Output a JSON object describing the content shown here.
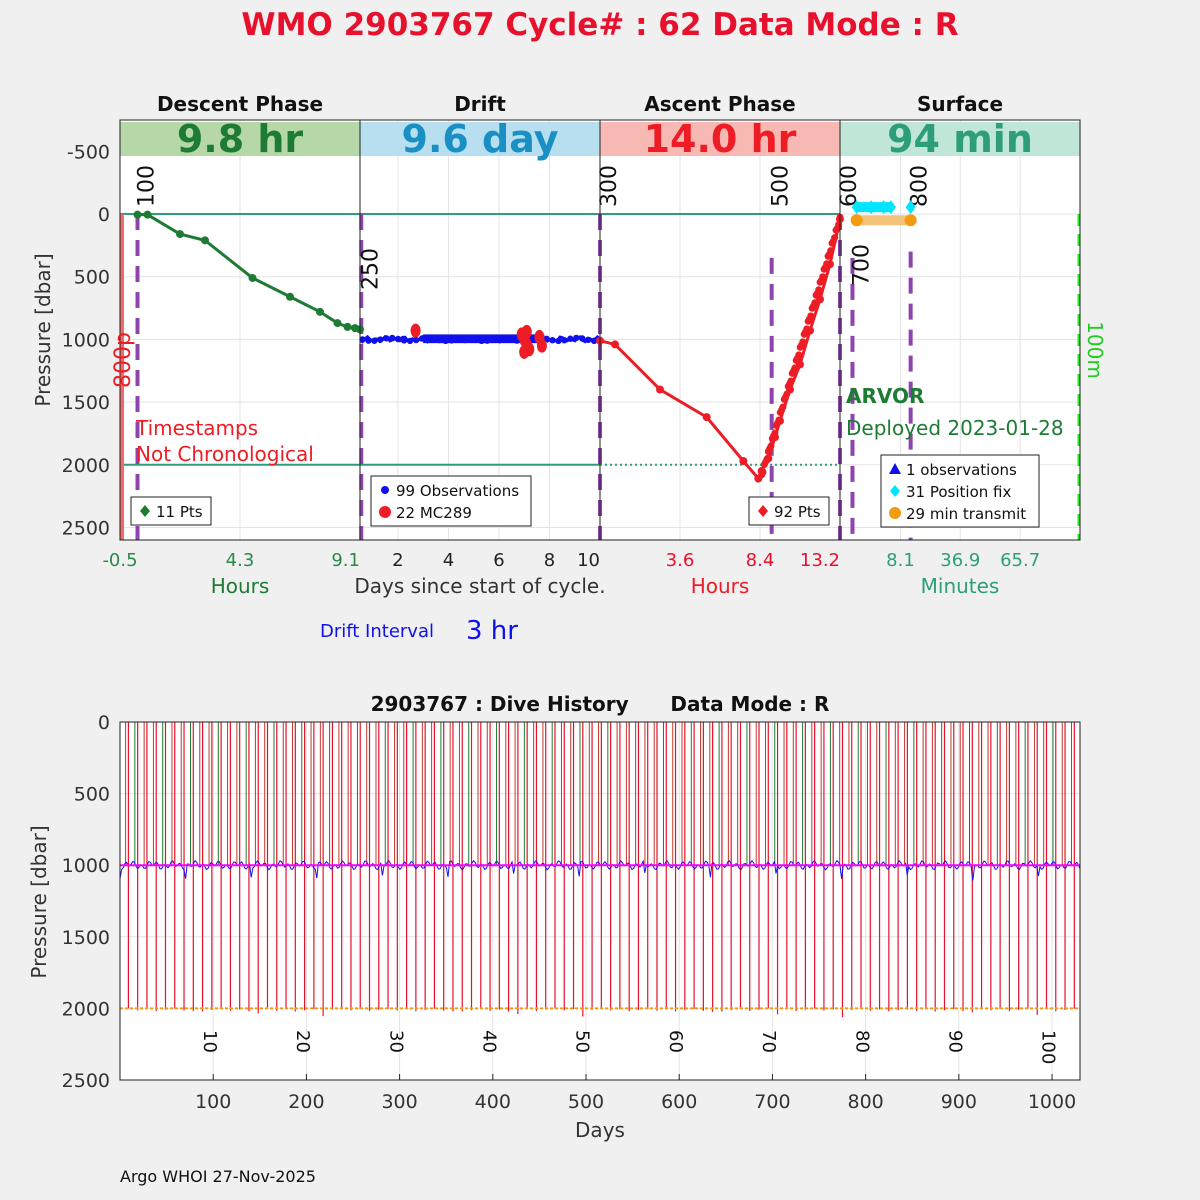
{
  "title": "WMO 2903767   Cycle# : 62   Data Mode : R",
  "colors": {
    "title": "#e8112d",
    "descent": "#1e7b34",
    "drift": "#1010ee",
    "ascent": "#ee1c25",
    "surface_teal": "#2e9e7a",
    "purple": "#8e44ad",
    "orange": "#f39c12",
    "cyan": "#00e5ff",
    "band_descent": "#b6d7a8",
    "band_drift": "#b7dff0",
    "band_ascent": "#f8b9b4",
    "band_surface": "#bfe6d6"
  },
  "top": {
    "yaxis": {
      "label": "Pressure [dbar]",
      "ticks": [
        -500,
        0,
        500,
        1000,
        1500,
        2000,
        2500
      ],
      "tick_labels": [
        "-500",
        "0",
        "500",
        "1000",
        "1500",
        "2000",
        "2500"
      ],
      "ylim": [
        -750,
        2600
      ]
    },
    "phases": [
      {
        "title": "Descent Phase",
        "band": "9.8 hr",
        "color": "#1e7b34",
        "band_color": "#b6d7a8",
        "xlabel": "Hours",
        "xlim": [
          -0.5,
          9.1
        ],
        "xticks": [
          -0.5,
          4.3,
          9.1
        ],
        "xtick_labels": [
          "-0.5",
          "4.3",
          "9.1"
        ],
        "tick_color": "#2a8a4a"
      },
      {
        "title": "Drift",
        "band": "9.6 day",
        "color": "#1a8fc4",
        "band_color": "#b7dff0",
        "xlabel": "Days since start of cycle.",
        "xlim": [
          0.5,
          10
        ],
        "xticks": [
          2,
          4,
          6,
          8,
          10
        ],
        "xtick_labels": [
          "2",
          "4",
          "6",
          "8",
          "10"
        ],
        "tick_color": "#222222"
      },
      {
        "title": "Ascent Phase",
        "band": "14.0 hr",
        "color": "#ee1c25",
        "band_color": "#f8b9b4",
        "xlabel": "Hours",
        "xlim": [
          -1.2,
          13.2
        ],
        "xticks": [
          3.6,
          8.4,
          13.2
        ],
        "xtick_labels": [
          "3.6",
          "8.4",
          "13.2"
        ],
        "tick_color": "#e8112d"
      },
      {
        "title": "Surface",
        "band": "94 min",
        "color": "#2e9e7a",
        "band_color": "#bfe6d6",
        "xlabel": "Minutes",
        "xlim": [
          -21,
          94.5
        ],
        "xticks": [
          8.1,
          36.9,
          65.7
        ],
        "xtick_labels": [
          "8.1",
          "36.9",
          "65.7"
        ],
        "tick_color": "#2e9e7a"
      }
    ],
    "cycle_markers": [
      {
        "label": "100",
        "phase": 0,
        "x": 0.2
      },
      {
        "label": "250",
        "phase": 1,
        "x": 0.55
      },
      {
        "label": "300",
        "phase": 2,
        "x": -1.2
      },
      {
        "label": "500",
        "phase": 2,
        "x": 9.1
      },
      {
        "label": "600",
        "phase": 3,
        "x": -21
      },
      {
        "label": "700",
        "phase": 3,
        "x": -15
      },
      {
        "label": "800",
        "phase": 3,
        "x": 13
      }
    ],
    "side_labels": {
      "left": "800p",
      "right": "100m"
    },
    "annotations": {
      "timestamps_line1": "Timestamps",
      "timestamps_line2": "Not Chronological",
      "float_type": "ARVOR",
      "deployed": "Deployed 2023-01-28",
      "drift_interval_label": "Drift Interval",
      "drift_interval_value": "3 hr"
    },
    "legends": {
      "descent": [
        "11 Pts"
      ],
      "drift": [
        "99 Observations",
        "22 MC289"
      ],
      "ascent": [
        "92 Pts"
      ],
      "surface": [
        "1 observations",
        "31 Position fix",
        "29 min transmit"
      ]
    }
  },
  "chart_data": [
    {
      "type": "line",
      "title": "Descent Phase",
      "xlabel": "Hours",
      "ylabel": "Pressure [dbar]",
      "x": [
        0.2,
        0.6,
        1.9,
        2.9,
        4.8,
        6.3,
        7.5,
        8.2,
        8.6,
        8.9,
        9.1
      ],
      "y": [
        5,
        5,
        160,
        210,
        510,
        660,
        780,
        870,
        900,
        910,
        920
      ]
    },
    {
      "type": "scatter",
      "title": "Drift",
      "xlabel": "Days since start of cycle.",
      "ylabel": "Pressure [dbar]",
      "series": [
        {
          "name": "99 Observations",
          "mean_pressure": 1000,
          "x_range": [
            0.5,
            10
          ]
        },
        {
          "name": "22 MC289",
          "x": [
            2.7,
            6.9,
            7.0,
            7.1,
            7.2,
            7.6,
            7.7,
            7.0,
            7.1
          ],
          "y": [
            930,
            960,
            1000,
            1040,
            1080,
            980,
            1050,
            1100,
            940
          ]
        }
      ]
    },
    {
      "type": "line",
      "title": "Ascent Phase",
      "xlabel": "Hours",
      "ylabel": "Pressure [dbar]",
      "x": [
        -1.2,
        -0.3,
        2.4,
        5.2,
        7.4,
        8.3,
        8.5,
        8.9,
        9.3,
        9.6,
        10.2,
        10.8,
        11.4,
        12.0,
        12.6,
        13.2
      ],
      "y": [
        1010,
        1040,
        1400,
        1620,
        1970,
        2110,
        2050,
        1950,
        1780,
        1650,
        1400,
        1200,
        930,
        680,
        400,
        40
      ]
    },
    {
      "type": "scatter",
      "title": "Surface",
      "xlabel": "Minutes",
      "series": [
        {
          "name": "1 observations",
          "x": [
            8
          ],
          "y": [
            -40
          ]
        },
        {
          "name": "31 Position fix",
          "x": [
            -13,
            -6,
            0,
            3.5,
            13
          ],
          "y": [
            -55,
            -55,
            -55,
            -55,
            -55
          ]
        },
        {
          "name": "29 min transmit",
          "x": [
            -13,
            13
          ],
          "y": [
            50,
            50
          ]
        }
      ]
    },
    {
      "type": "line",
      "title": "2903767 : Dive History      Data Mode : R",
      "xlabel": "Days",
      "ylabel": "Pressure [dbar]",
      "xlim": [
        0,
        1030
      ],
      "ylim": [
        0,
        2500
      ],
      "xticks": [
        100,
        200,
        300,
        400,
        500,
        600,
        700,
        800,
        900,
        1000
      ],
      "xtick_labels": [
        "100",
        "200",
        "300",
        "400",
        "500",
        "600",
        "700",
        "800",
        "900",
        "1000"
      ],
      "yticks": [
        0,
        500,
        1000,
        1500,
        2000,
        2500
      ],
      "ytick_labels": [
        "0",
        "500",
        "1000",
        "1500",
        "2000",
        "2500"
      ],
      "cycle_labels": [
        "10",
        "20",
        "30",
        "40",
        "50",
        "60",
        "70",
        "80",
        "90",
        "100"
      ],
      "cycle_label_days": [
        90,
        190,
        290,
        390,
        490,
        590,
        690,
        790,
        890,
        990
      ],
      "series": [
        {
          "name": "Drift pressure",
          "mean": 1000
        },
        {
          "name": "Target drift",
          "value": 1000
        },
        {
          "name": "Profile depth",
          "value": 2000
        }
      ],
      "n_cycles": 103,
      "cycle_period_days": 10
    }
  ],
  "footer": "Argo WHOI 27-Nov-2025"
}
